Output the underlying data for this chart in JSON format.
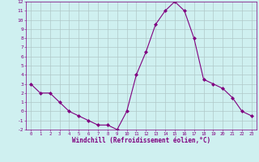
{
  "x": [
    0,
    1,
    2,
    3,
    4,
    5,
    6,
    7,
    8,
    9,
    10,
    11,
    12,
    13,
    14,
    15,
    16,
    17,
    18,
    19,
    20,
    21,
    22,
    23
  ],
  "y": [
    3,
    2,
    2,
    1,
    0,
    -0.5,
    -1,
    -1.5,
    -1.5,
    -2,
    0,
    4,
    6.5,
    9.5,
    11,
    12,
    11,
    8,
    3.5,
    3,
    2.5,
    1.5,
    0,
    -0.5
  ],
  "line_color": "#800080",
  "marker": "D",
  "marker_size": 2.0,
  "bg_color": "#cff0f0",
  "grid_color": "#b0c8c8",
  "xlabel": "Windchill (Refroidissement éolien,°C)",
  "xlabel_color": "#800080",
  "tick_color": "#800080",
  "ylim": [
    -2,
    12
  ],
  "xlim": [
    -0.5,
    23.5
  ],
  "yticks": [
    -2,
    -1,
    0,
    1,
    2,
    3,
    4,
    5,
    6,
    7,
    8,
    9,
    10,
    11,
    12
  ],
  "xticks": [
    0,
    1,
    2,
    3,
    4,
    5,
    6,
    7,
    8,
    9,
    10,
    11,
    12,
    13,
    14,
    15,
    16,
    17,
    18,
    19,
    20,
    21,
    22,
    23
  ],
  "spine_color": "#800080",
  "figsize": [
    3.2,
    2.0
  ],
  "dpi": 100
}
